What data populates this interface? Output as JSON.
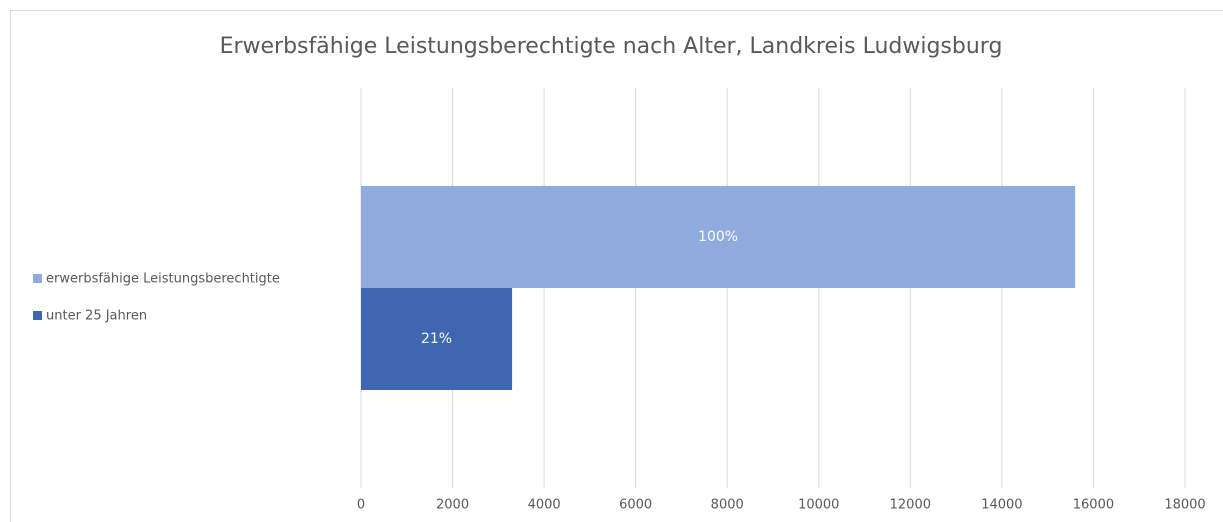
{
  "chart_data": {
    "type": "bar",
    "orientation": "horizontal",
    "title": "Erwerbsfähige Leistungsberechtigte nach Alter, Landkreis Ludwigsburg",
    "categories": [
      null
    ],
    "series": [
      {
        "name": "erwerbsfähige Leistungsberechtigte",
        "color": "#8faadc",
        "values": [
          15600
        ],
        "value_labels": [
          "100%"
        ]
      },
      {
        "name": "unter 25 Jahren",
        "color": "#3f66b0",
        "values": [
          3300
        ],
        "value_labels": [
          "21%"
        ]
      }
    ],
    "xlim": [
      0,
      18000
    ],
    "xticks": [
      0,
      2000,
      4000,
      6000,
      8000,
      10000,
      12000,
      14000,
      16000,
      18000
    ],
    "grid": true,
    "legend": "left"
  }
}
